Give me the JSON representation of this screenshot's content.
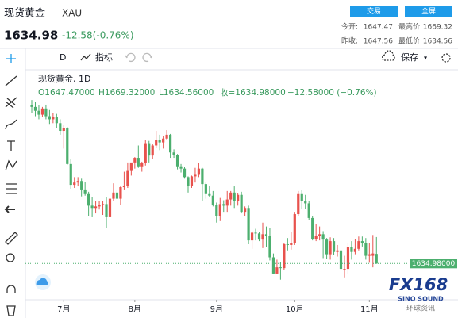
{
  "header": {
    "name": "现货黄金",
    "code": "XAU",
    "buttons": [
      "交易",
      "全屏"
    ],
    "price": "1634.98",
    "change": "-12.58(-0.76%)",
    "stats": [
      [
        "今开:",
        "1647.47"
      ],
      [
        "最高价:",
        "1669.32"
      ],
      [
        "昨收:",
        "1647.56"
      ],
      [
        "最低价:",
        "1634.56"
      ]
    ]
  },
  "toolbar": {
    "interval": "D",
    "indicators": "指标",
    "save": "保存"
  },
  "legend": {
    "symbol": "现货黄金, 1D",
    "items": [
      "O1647.47000",
      "H1669.32000",
      "L1634.56000",
      "收=1634.98000",
      "−12.58000 (−0.76%)"
    ]
  },
  "watermark": {
    "logo": "FX168",
    "sub": "SINO SOUND",
    "cn": "环球资讯"
  },
  "chart_data": {
    "type": "candlestick",
    "up_color": "#e8524d",
    "down_color": "#4caf6e",
    "ylim": [
      1588,
      1879
    ],
    "last_price_label": "1634.98000",
    "categories": [
      null,
      null,
      null,
      null,
      null,
      null,
      null,
      null,
      null,
      "7月",
      null,
      null,
      null,
      null,
      null,
      null,
      null,
      null,
      null,
      null,
      null,
      null,
      null,
      null,
      null,
      null,
      null,
      null,
      null,
      "8月",
      null,
      null,
      null,
      null,
      null,
      null,
      null,
      null,
      null,
      null,
      null,
      null,
      null,
      null,
      null,
      null,
      null,
      null,
      null,
      null,
      null,
      null,
      "9月",
      null,
      null,
      null,
      null,
      null,
      null,
      null,
      null,
      null,
      null,
      null,
      null,
      null,
      null,
      null,
      null,
      null,
      null,
      null,
      null,
      null,
      "10月",
      null,
      null,
      null,
      null,
      null,
      null,
      null,
      null,
      null,
      null,
      null,
      null,
      null,
      null,
      null,
      null,
      null,
      null,
      null,
      null,
      "11月",
      null,
      null
    ],
    "ohlc": [
      [
        1840,
        1847,
        1830,
        1838
      ],
      [
        1838,
        1845,
        1826,
        1833
      ],
      [
        1833,
        1840,
        1822,
        1828
      ],
      [
        1828,
        1838,
        1825,
        1836
      ],
      [
        1836,
        1841,
        1822,
        1826
      ],
      [
        1826,
        1834,
        1816,
        1822
      ],
      [
        1822,
        1830,
        1817,
        1825
      ],
      [
        1825,
        1829,
        1811,
        1817
      ],
      [
        1817,
        1822,
        1802,
        1807
      ],
      [
        1807,
        1814,
        1784,
        1811
      ],
      [
        1811,
        1812,
        1763,
        1764
      ],
      [
        1764,
        1771,
        1732,
        1737
      ],
      [
        1737,
        1747,
        1733,
        1740
      ],
      [
        1740,
        1747,
        1735,
        1742
      ],
      [
        1742,
        1745,
        1722,
        1731
      ],
      [
        1731,
        1741,
        1723,
        1725
      ],
      [
        1725,
        1728,
        1697,
        1710
      ],
      [
        1710,
        1721,
        1695,
        1707
      ],
      [
        1707,
        1716,
        1700,
        1709
      ],
      [
        1709,
        1716,
        1705,
        1711
      ],
      [
        1711,
        1716,
        1698,
        1712
      ],
      [
        1712,
        1721,
        1681,
        1695
      ],
      [
        1695,
        1727,
        1690,
        1719
      ],
      [
        1719,
        1739,
        1716,
        1727
      ],
      [
        1727,
        1730,
        1719,
        1719
      ],
      [
        1719,
        1735,
        1711,
        1734
      ],
      [
        1734,
        1754,
        1731,
        1736
      ],
      [
        1736,
        1766,
        1733,
        1755
      ],
      [
        1755,
        1765,
        1749,
        1766
      ],
      [
        1766,
        1773,
        1758,
        1772
      ],
      [
        1772,
        1788,
        1759,
        1761
      ],
      [
        1761,
        1767,
        1754,
        1765
      ],
      [
        1765,
        1795,
        1762,
        1791
      ],
      [
        1791,
        1794,
        1766,
        1775
      ],
      [
        1775,
        1790,
        1771,
        1788
      ],
      [
        1788,
        1807,
        1785,
        1795
      ],
      [
        1795,
        1802,
        1782,
        1792
      ],
      [
        1792,
        1800,
        1784,
        1797
      ],
      [
        1797,
        1808,
        1795,
        1802
      ],
      [
        1802,
        1803,
        1772,
        1779
      ],
      [
        1779,
        1783,
        1772,
        1776
      ],
      [
        1776,
        1777,
        1757,
        1761
      ],
      [
        1761,
        1764,
        1753,
        1758
      ],
      [
        1758,
        1760,
        1745,
        1747
      ],
      [
        1747,
        1748,
        1727,
        1736
      ],
      [
        1736,
        1749,
        1733,
        1748
      ],
      [
        1748,
        1759,
        1740,
        1750
      ],
      [
        1750,
        1765,
        1747,
        1758
      ],
      [
        1758,
        1759,
        1716,
        1738
      ],
      [
        1738,
        1740,
        1719,
        1725
      ],
      [
        1725,
        1735,
        1721,
        1723
      ],
      [
        1723,
        1729,
        1709,
        1711
      ],
      [
        1711,
        1714,
        1688,
        1697
      ],
      [
        1697,
        1720,
        1690,
        1712
      ],
      [
        1712,
        1717,
        1702,
        1710
      ],
      [
        1710,
        1729,
        1702,
        1718
      ],
      [
        1718,
        1729,
        1710,
        1727
      ],
      [
        1727,
        1735,
        1707,
        1716
      ],
      [
        1716,
        1726,
        1710,
        1724
      ],
      [
        1724,
        1728,
        1700,
        1702
      ],
      [
        1702,
        1709,
        1697,
        1707
      ],
      [
        1707,
        1710,
        1660,
        1665
      ],
      [
        1665,
        1677,
        1654,
        1675
      ],
      [
        1675,
        1680,
        1665,
        1674
      ],
      [
        1674,
        1676,
        1664,
        1666
      ],
      [
        1666,
        1688,
        1655,
        1673
      ],
      [
        1673,
        1683,
        1656,
        1671
      ],
      [
        1671,
        1681,
        1639,
        1643
      ],
      [
        1643,
        1648,
        1621,
        1622
      ],
      [
        1622,
        1640,
        1622,
        1630
      ],
      [
        1630,
        1637,
        1614,
        1629
      ],
      [
        1629,
        1662,
        1627,
        1660
      ],
      [
        1660,
        1668,
        1652,
        1659
      ],
      [
        1659,
        1676,
        1653,
        1661
      ],
      [
        1661,
        1702,
        1659,
        1699
      ],
      [
        1699,
        1729,
        1696,
        1725
      ],
      [
        1725,
        1730,
        1706,
        1716
      ],
      [
        1716,
        1724,
        1706,
        1713
      ],
      [
        1713,
        1716,
        1691,
        1694
      ],
      [
        1694,
        1697,
        1665,
        1667
      ],
      [
        1667,
        1686,
        1664,
        1671
      ],
      [
        1671,
        1683,
        1665,
        1673
      ],
      [
        1673,
        1677,
        1642,
        1666
      ],
      [
        1666,
        1668,
        1641,
        1647
      ],
      [
        1647,
        1669,
        1640,
        1664
      ],
      [
        1664,
        1668,
        1646,
        1650
      ],
      [
        1650,
        1659,
        1644,
        1652
      ],
      [
        1652,
        1655,
        1620,
        1628
      ],
      [
        1628,
        1645,
        1617,
        1628
      ],
      [
        1628,
        1662,
        1621,
        1656
      ],
      [
        1656,
        1664,
        1640,
        1650
      ],
      [
        1650,
        1667,
        1647,
        1654
      ],
      [
        1654,
        1670,
        1652,
        1664
      ],
      [
        1664,
        1670,
        1657,
        1662
      ],
      [
        1662,
        1668,
        1640,
        1645
      ],
      [
        1645,
        1661,
        1636,
        1647
      ],
      [
        1645,
        1672,
        1630,
        1648
      ],
      [
        1647.47,
        1669.32,
        1634.56,
        1634.98
      ]
    ]
  }
}
